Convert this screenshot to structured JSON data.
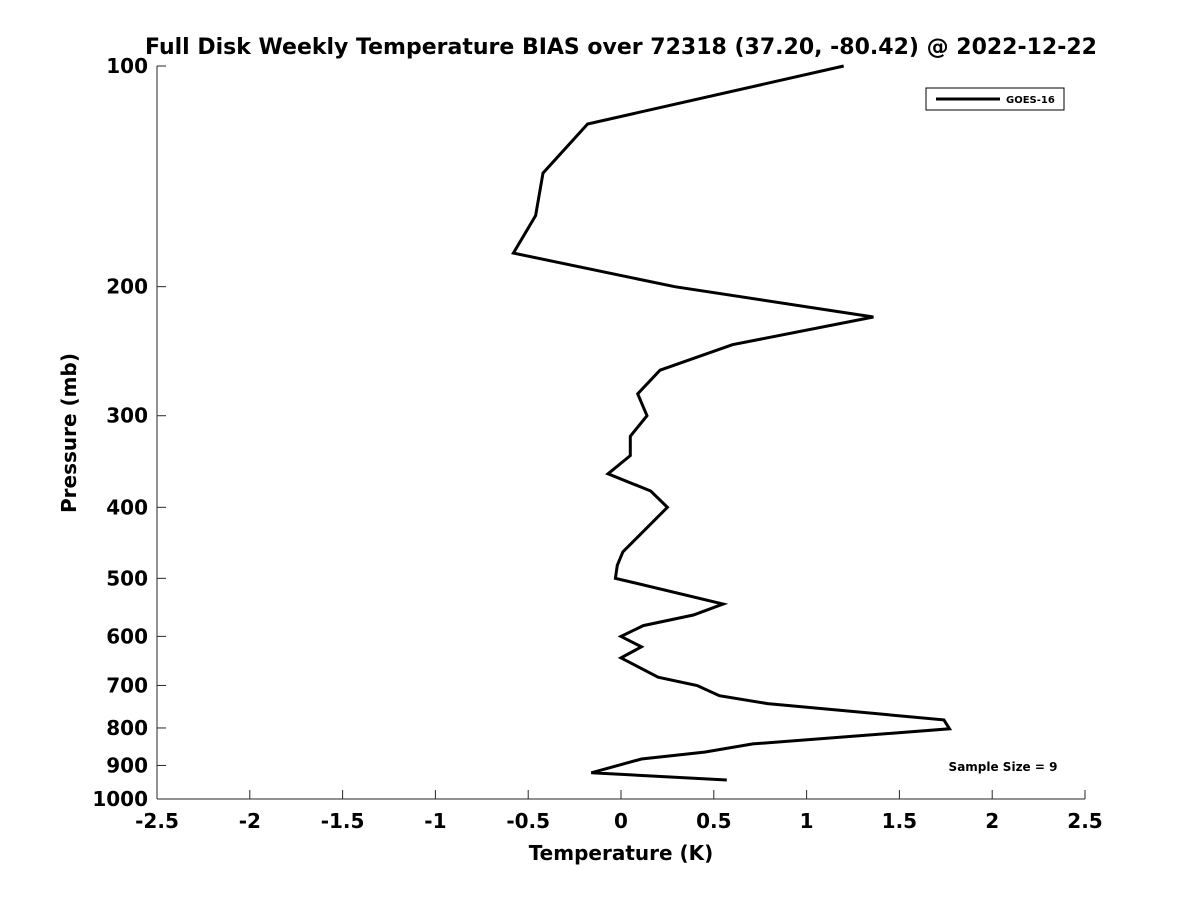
{
  "chart_data": {
    "type": "line",
    "title": "Full Disk Weekly Temperature BIAS over 72318 (37.20, -80.42) @ 2022-12-22",
    "xlabel": "Temperature (K)",
    "ylabel": "Pressure (mb)",
    "xlim": [
      -2.5,
      2.5
    ],
    "ylim": [
      100,
      1000
    ],
    "yscale": "log",
    "yreversed": true,
    "xticks": [
      -2.5,
      -2,
      -1.5,
      -1,
      -0.5,
      0,
      0.5,
      1,
      1.5,
      2,
      2.5
    ],
    "xtick_labels": [
      "-2.5",
      "-2",
      "-1.5",
      "-1",
      "-0.5",
      "0",
      "0.5",
      "1",
      "1.5",
      "2",
      "2.5"
    ],
    "yticks": [
      100,
      200,
      300,
      400,
      500,
      600,
      700,
      800,
      900,
      1000
    ],
    "ytick_labels": [
      "100",
      "200",
      "300",
      "400",
      "500",
      "600",
      "700",
      "800",
      "900",
      "1000"
    ],
    "grid": false,
    "legend": {
      "position": "top-right",
      "entries": [
        "GOES-16"
      ]
    },
    "annotation": "Sample Size = 9",
    "series": [
      {
        "name": "GOES-16",
        "color": "#000000",
        "points": [
          [
            1.2,
            100
          ],
          [
            -0.18,
            120
          ],
          [
            -0.42,
            140
          ],
          [
            -0.46,
            160
          ],
          [
            -0.58,
            180
          ],
          [
            0.29,
            200
          ],
          [
            1.36,
            220
          ],
          [
            0.6,
            240
          ],
          [
            0.21,
            260
          ],
          [
            0.09,
            280
          ],
          [
            0.14,
            300
          ],
          [
            0.05,
            320
          ],
          [
            0.05,
            340
          ],
          [
            -0.07,
            360
          ],
          [
            0.16,
            380
          ],
          [
            0.25,
            400
          ],
          [
            0.01,
            460
          ],
          [
            -0.02,
            480
          ],
          [
            -0.03,
            500
          ],
          [
            0.55,
            542
          ],
          [
            0.39,
            561
          ],
          [
            0.12,
            580
          ],
          [
            0.0,
            600
          ],
          [
            0.11,
            620
          ],
          [
            0.0,
            642
          ],
          [
            0.2,
            682
          ],
          [
            0.41,
            700
          ],
          [
            0.53,
            723
          ],
          [
            0.79,
            741
          ],
          [
            1.74,
            780
          ],
          [
            1.77,
            802
          ],
          [
            0.71,
            841
          ],
          [
            0.45,
            863
          ],
          [
            0.11,
            882
          ],
          [
            -0.16,
            921
          ],
          [
            0.57,
            942
          ]
        ]
      }
    ]
  }
}
